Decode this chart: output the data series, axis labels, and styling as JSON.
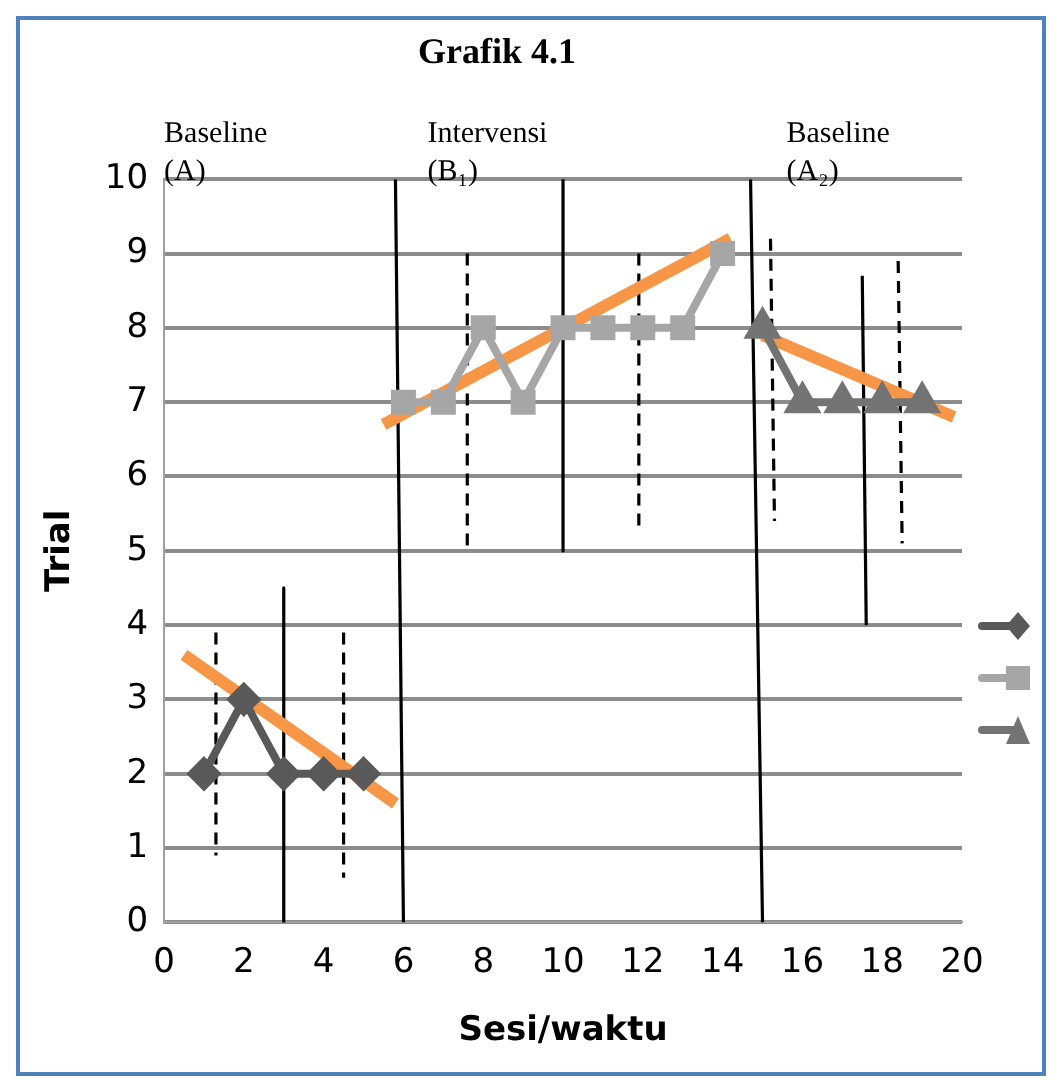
{
  "chart_data": {
    "type": "line",
    "title": "Grafik 4.1",
    "xlabel": "Sesi/waktu",
    "ylabel": "Trial",
    "xlim": [
      0,
      20
    ],
    "xticks": [
      0,
      2,
      4,
      6,
      8,
      10,
      12,
      14,
      16,
      18,
      20
    ],
    "ylim": [
      0,
      10
    ],
    "yticks": [
      0,
      1,
      2,
      3,
      4,
      5,
      6,
      7,
      8,
      9,
      10
    ],
    "grid": "y",
    "annotations": [
      "Baseline (A)",
      "Intervensi (B₁)",
      "Baseline (A₂)"
    ],
    "series": [
      {
        "color": "#595959",
        "marker": "diamond",
        "x": [
          1,
          2,
          3,
          4,
          5
        ],
        "values": [
          2,
          3,
          2,
          2,
          2
        ]
      },
      {
        "color": "#a6a6a6",
        "marker": "square",
        "x": [
          6,
          7,
          8,
          9,
          10,
          11,
          12,
          13,
          14
        ],
        "values": [
          7,
          7,
          8,
          7,
          8,
          8,
          8,
          8,
          9
        ]
      },
      {
        "color": "#737373",
        "marker": "triangle",
        "x": [
          15,
          16,
          17,
          18,
          19
        ],
        "values": [
          8,
          7,
          7,
          7,
          7
        ]
      },
      {
        "color": "#f79646",
        "marker": "none",
        "line_style": "solid",
        "x": [
          0.5,
          5.8
        ],
        "values": [
          3.6,
          1.6
        ]
      },
      {
        "color": "#f79646",
        "marker": "none",
        "line_style": "solid",
        "x": [
          5.5,
          14.2
        ],
        "values": [
          6.7,
          9.2
        ]
      },
      {
        "color": "#f79646",
        "marker": "none",
        "line_style": "solid",
        "x": [
          15,
          19.8
        ],
        "values": [
          7.9,
          6.8
        ]
      },
      {
        "color": "#000000",
        "marker": "none",
        "line_style": "solid",
        "x": [
          5.8,
          6
        ],
        "values": [
          10,
          0
        ]
      },
      {
        "color": "#000000",
        "marker": "none",
        "line_style": "solid",
        "x": [
          14.7,
          15
        ],
        "values": [
          10,
          0
        ]
      },
      {
        "color": "#000000",
        "marker": "none",
        "line_style": "solid",
        "x": [
          3,
          3
        ],
        "values": [
          4.5,
          0
        ]
      },
      {
        "color": "#000000",
        "marker": "none",
        "line_style": "solid",
        "x": [
          10,
          10
        ],
        "values": [
          10,
          5
        ]
      },
      {
        "color": "#000000",
        "marker": "none",
        "line_style": "solid",
        "x": [
          17.5,
          17.6
        ],
        "values": [
          8.7,
          4
        ]
      },
      {
        "color": "#000000",
        "marker": "none",
        "line_style": "dashed",
        "x": [
          1.3,
          1.3
        ],
        "values": [
          3.9,
          0.9
        ]
      },
      {
        "color": "#000000",
        "marker": "none",
        "line_style": "dashed",
        "x": [
          4.5,
          4.5
        ],
        "values": [
          3.9,
          0.6
        ]
      },
      {
        "color": "#000000",
        "marker": "none",
        "line_style": "dashed",
        "x": [
          7.6,
          7.6
        ],
        "values": [
          9,
          5
        ]
      },
      {
        "color": "#000000",
        "marker": "none",
        "line_style": "dashed",
        "x": [
          11.9,
          11.9
        ],
        "values": [
          9,
          5.3
        ]
      },
      {
        "color": "#000000",
        "marker": "none",
        "line_style": "dashed",
        "x": [
          15.2,
          15.3
        ],
        "values": [
          9.2,
          5.4
        ]
      },
      {
        "color": "#000000",
        "marker": "none",
        "line_style": "dashed",
        "x": [
          18.4,
          18.5
        ],
        "values": [
          8.9,
          5.1
        ]
      }
    ]
  }
}
